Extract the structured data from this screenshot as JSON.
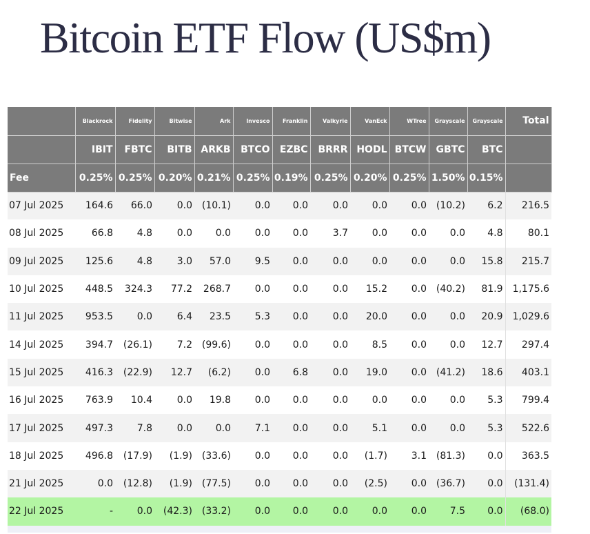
{
  "title": "Bitcoin ETF Flow (US$m)",
  "issuers": [
    "",
    "Blackrock",
    "Fidelity",
    "Bitwise",
    "Ark",
    "Invesco",
    "Franklin",
    "Valkyrie",
    "VanEck",
    "WTree",
    "Grayscale",
    "Grayscale",
    "Total"
  ],
  "tickers": [
    "",
    "IBIT",
    "FBTC",
    "BITB",
    "ARKB",
    "BTCO",
    "EZBC",
    "BRRR",
    "HODL",
    "BTCW",
    "GBTC",
    "BTC",
    ""
  ],
  "fees": [
    "Fee",
    "0.25%",
    "0.25%",
    "0.20%",
    "0.21%",
    "0.25%",
    "0.19%",
    "0.25%",
    "0.20%",
    "0.25%",
    "1.50%",
    "0.15%",
    ""
  ],
  "colors": {
    "header_bg": "#7b7b7b",
    "negative": "#e2382a",
    "highlight": "#b3f5a3",
    "title": "#2c2d45"
  },
  "rows": [
    {
      "cells": [
        "07 Jul 2025",
        "164.6",
        "66.0",
        "0.0",
        "(10.1)",
        "0.0",
        "0.0",
        "0.0",
        "0.0",
        "0.0",
        "(10.2)",
        "6.2",
        "216.5"
      ]
    },
    {
      "cells": [
        "08 Jul 2025",
        "66.8",
        "4.8",
        "0.0",
        "0.0",
        "0.0",
        "0.0",
        "3.7",
        "0.0",
        "0.0",
        "0.0",
        "4.8",
        "80.1"
      ]
    },
    {
      "cells": [
        "09 Jul 2025",
        "125.6",
        "4.8",
        "3.0",
        "57.0",
        "9.5",
        "0.0",
        "0.0",
        "0.0",
        "0.0",
        "0.0",
        "15.8",
        "215.7"
      ]
    },
    {
      "cells": [
        "10 Jul 2025",
        "448.5",
        "324.3",
        "77.2",
        "268.7",
        "0.0",
        "0.0",
        "0.0",
        "15.2",
        "0.0",
        "(40.2)",
        "81.9",
        "1,175.6"
      ]
    },
    {
      "cells": [
        "11 Jul 2025",
        "953.5",
        "0.0",
        "6.4",
        "23.5",
        "5.3",
        "0.0",
        "0.0",
        "20.0",
        "0.0",
        "0.0",
        "20.9",
        "1,029.6"
      ]
    },
    {
      "cells": [
        "14 Jul 2025",
        "394.7",
        "(26.1)",
        "7.2",
        "(99.6)",
        "0.0",
        "0.0",
        "0.0",
        "8.5",
        "0.0",
        "0.0",
        "12.7",
        "297.4"
      ]
    },
    {
      "cells": [
        "15 Jul 2025",
        "416.3",
        "(22.9)",
        "12.7",
        "(6.2)",
        "0.0",
        "6.8",
        "0.0",
        "19.0",
        "0.0",
        "(41.2)",
        "18.6",
        "403.1"
      ]
    },
    {
      "cells": [
        "16 Jul 2025",
        "763.9",
        "10.4",
        "0.0",
        "19.8",
        "0.0",
        "0.0",
        "0.0",
        "0.0",
        "0.0",
        "0.0",
        "5.3",
        "799.4"
      ]
    },
    {
      "cells": [
        "17 Jul 2025",
        "497.3",
        "7.8",
        "0.0",
        "0.0",
        "7.1",
        "0.0",
        "0.0",
        "5.1",
        "0.0",
        "0.0",
        "5.3",
        "522.6"
      ]
    },
    {
      "cells": [
        "18 Jul 2025",
        "496.8",
        "(17.9)",
        "(1.9)",
        "(33.6)",
        "0.0",
        "0.0",
        "0.0",
        "(1.7)",
        "3.1",
        "(81.3)",
        "0.0",
        "363.5"
      ]
    },
    {
      "cells": [
        "21 Jul 2025",
        "0.0",
        "(12.8)",
        "(1.9)",
        "(77.5)",
        "0.0",
        "0.0",
        "0.0",
        "(2.5)",
        "0.0",
        "(36.7)",
        "0.0",
        "(131.4)"
      ]
    },
    {
      "cells": [
        "22 Jul 2025",
        "-",
        "0.0",
        "(42.3)",
        "(33.2)",
        "0.0",
        "0.0",
        "0.0",
        "0.0",
        "0.0",
        "7.5",
        "0.0",
        "(68.0)"
      ],
      "highlight": true
    }
  ]
}
